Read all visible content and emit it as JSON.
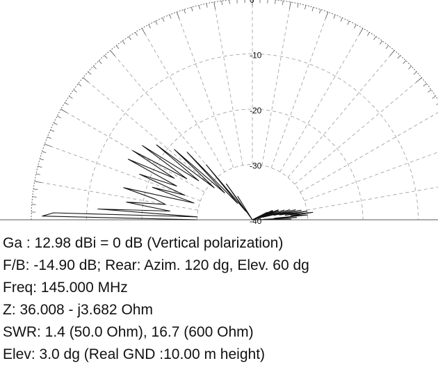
{
  "chart_data": {
    "type": "polar",
    "projection": "elevation half-plane (upper semicircle)",
    "radial_unit": "dB",
    "ring_labels": [
      "0",
      "-10",
      "-20",
      "-30",
      "-40"
    ],
    "ring_values": [
      0,
      -10,
      -20,
      -30,
      -40
    ],
    "radial_range": [
      -40,
      0
    ],
    "angular_range_deg": [
      0,
      180
    ],
    "grid": true,
    "series": [
      {
        "angles_deg": [
          0,
          1,
          2,
          3,
          4,
          5,
          6,
          7,
          8,
          9,
          10,
          11,
          12,
          13,
          14,
          15,
          16,
          17,
          18,
          19,
          20,
          21,
          22,
          23,
          24,
          25,
          26,
          27,
          28,
          30,
          32,
          34,
          36,
          38,
          40,
          42,
          44,
          46,
          48,
          50,
          52,
          54,
          56,
          58,
          60,
          90,
          120,
          122,
          124,
          126,
          128,
          130,
          132,
          134,
          136,
          138,
          140,
          142,
          144,
          146,
          148,
          150,
          152,
          154,
          156,
          158,
          160,
          162,
          164,
          166,
          168,
          170,
          172,
          174,
          176,
          177,
          178,
          179,
          180
        ],
        "values_db": [
          -40,
          -33,
          -38,
          -32,
          -36,
          -30,
          -33,
          -29,
          -34,
          -30,
          -35,
          -31,
          -36,
          -32,
          -38,
          -33,
          -40,
          -34,
          -40,
          -35,
          -40,
          -35,
          -40,
          -36,
          -40,
          -36,
          -40,
          -37,
          -40,
          -40,
          -40,
          -40,
          -40,
          -40,
          -40,
          -40,
          -40,
          -40,
          -40,
          -40,
          -40,
          -40,
          -40,
          -40,
          -40,
          -40,
          -40,
          -35,
          -40,
          -32,
          -38,
          -27,
          -36,
          -23,
          -33,
          -21,
          -31,
          -18,
          -28,
          -16,
          -26,
          -15,
          -24,
          -15,
          -25,
          -18,
          -27,
          -21,
          -29,
          -16,
          -22,
          -24,
          -17,
          -25,
          -12,
          -30,
          -4,
          -2,
          -30
        ]
      }
    ]
  },
  "info": {
    "gain": "Ga : 12.98 dBi = 0 dB  (Vertical polarization)",
    "fb": "F/B: -14.90 dB; Rear: Azim. 120 dg,  Elev. 60 dg",
    "freq": "Freq: 145.000 MHz",
    "z": "Z: 36.008 - j3.682 Ohm",
    "swr": "SWR: 1.4 (50.0 Ohm), 16.7 (600 Ohm)",
    "elev": "Elev: 3.0 dg (Real GND  :10.00 m height)"
  }
}
